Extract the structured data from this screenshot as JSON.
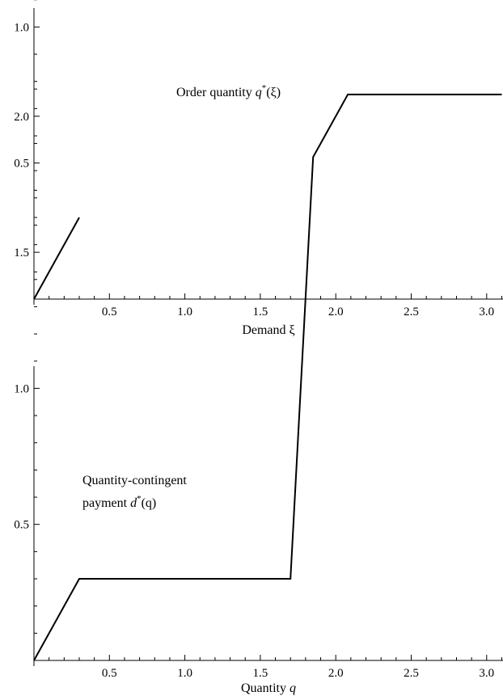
{
  "chart_data": [
    {
      "type": "line",
      "title": "",
      "xlabel": "Demand ξ",
      "ylabel": "",
      "xlim": [
        0,
        3.1
      ],
      "ylim": [
        0,
        2.1
      ],
      "grid": false,
      "xticks": [
        "0.5",
        "1.0",
        "1.5",
        "2.0",
        "2.5",
        "3.0"
      ],
      "yticks": [
        "0.5",
        "1.0",
        "1.5",
        "2.0"
      ],
      "annotation": {
        "text": "Order quantity ",
        "var": "q",
        "sup": "*",
        "arg": "(ξ)"
      },
      "series": [
        {
          "segments": [
            [
              [
                0,
                0
              ],
              [
                0.3,
                0.3
              ]
            ],
            [
              [
                0.3,
                1.7
              ],
              [
                1.7,
                1.7
              ],
              [
                2.08,
                2.08
              ],
              [
                3.1,
                2.08
              ]
            ]
          ]
        }
      ]
    },
    {
      "type": "line",
      "title": "",
      "xlabel": "Quantity ",
      "xlabel_var": "q",
      "ylabel": "",
      "xlim": [
        0,
        3.1
      ],
      "ylim": [
        0,
        2.1
      ],
      "grid": false,
      "xticks": [
        "0.5",
        "1.0",
        "1.5",
        "2.0",
        "2.5",
        "3.0"
      ],
      "yticks": [
        "0.5",
        "1.0",
        "1.5",
        "2.0"
      ],
      "annotation": {
        "line1": "Quantity-contingent",
        "text": "payment ",
        "var": "d",
        "sup": "*",
        "arg": "(q)"
      },
      "series": [
        {
          "segments": [
            [
              [
                0,
                0
              ],
              [
                0.3,
                0.3
              ],
              [
                1.7,
                0.3
              ],
              [
                1.85,
                1.85
              ],
              [
                2.08,
                2.08
              ],
              [
                3.1,
                2.08
              ]
            ]
          ]
        }
      ]
    }
  ]
}
